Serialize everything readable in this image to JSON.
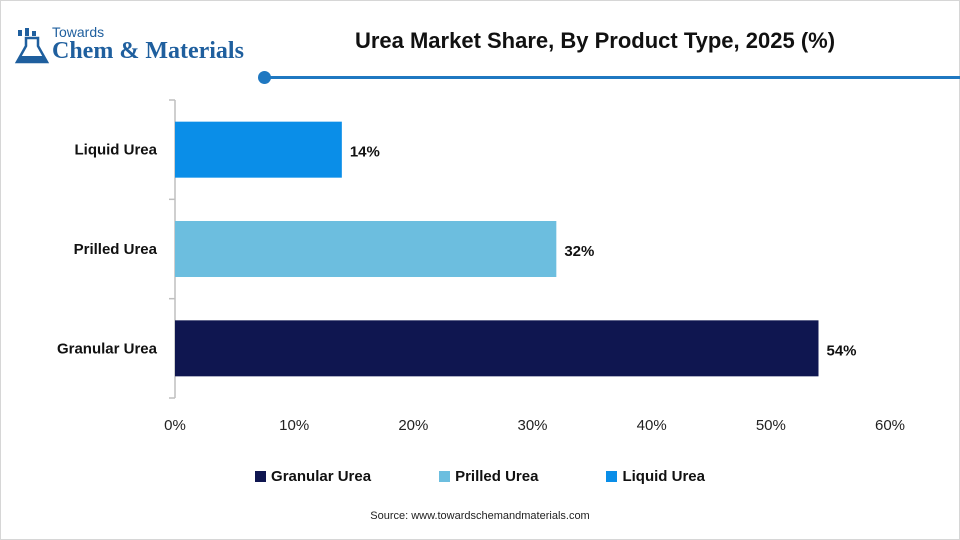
{
  "brand": {
    "top": "Towards",
    "main": "Chem & Materials"
  },
  "title": "Urea Market Share, By Product Type, 2025 (%)",
  "source": "Source: www.towardschemandmaterials.com",
  "colors": {
    "accent": "#1f78c1",
    "liquid": "#0a8ee8",
    "prilled": "#6cbedf",
    "granular": "#0f1650"
  },
  "chart_data": {
    "type": "bar",
    "orientation": "horizontal",
    "categories": [
      "Liquid Urea",
      "Prilled Urea",
      "Granular Urea"
    ],
    "values": [
      14,
      32,
      54
    ],
    "value_labels": [
      "14%",
      "32%",
      "54%"
    ],
    "bar_colors": [
      "#0a8ee8",
      "#6cbedf",
      "#0f1650"
    ],
    "x_ticks": [
      "0%",
      "10%",
      "20%",
      "30%",
      "40%",
      "50%",
      "60%"
    ],
    "xlim": [
      0,
      60
    ],
    "legend": [
      {
        "label": "Granular Urea",
        "color": "#0f1650"
      },
      {
        "label": "Prilled Urea",
        "color": "#6cbedf"
      },
      {
        "label": "Liquid Urea",
        "color": "#0a8ee8"
      }
    ],
    "legend_position": "bottom",
    "grid": false
  }
}
